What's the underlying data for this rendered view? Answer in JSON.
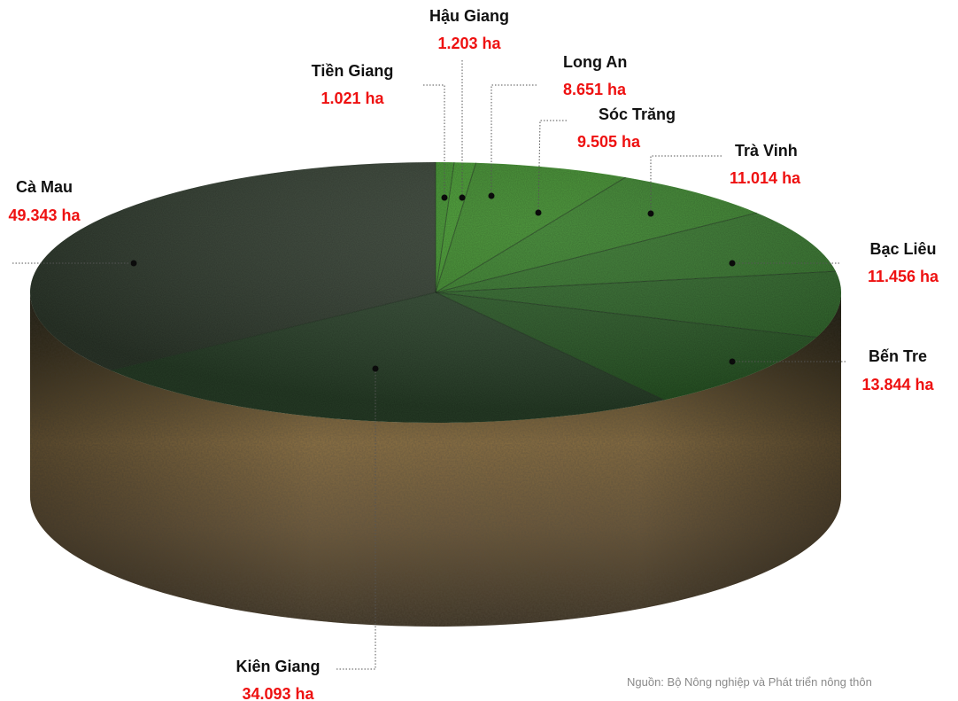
{
  "chart_data": {
    "type": "pie",
    "unit": "ha",
    "slices": [
      {
        "name": "Tiền Giang",
        "value": 1021,
        "label": "1.021 ha",
        "color": "#3f9a2a"
      },
      {
        "name": "Hậu Giang",
        "value": 1203,
        "label": "1.203 ha",
        "color": "#43a02c"
      },
      {
        "name": "Long An",
        "value": 8651,
        "label": "8.651 ha",
        "color": "#3e932a"
      },
      {
        "name": "Sóc Trăng",
        "value": 9505,
        "label": "9.505 ha",
        "color": "#3a8a2b"
      },
      {
        "name": "Trà Vinh",
        "value": 11014,
        "label": "11.014 ha",
        "color": "#357c2b"
      },
      {
        "name": "Bạc Liêu",
        "value": 11456,
        "label": "11.456 ha",
        "color": "#306e2a"
      },
      {
        "name": "Bến Tre",
        "value": 13844,
        "label": "13.844 ha",
        "color": "#2d6229"
      },
      {
        "name": "Kiên Giang",
        "value": 34093,
        "label": "34.093 ha",
        "color": "#2f4a2f"
      },
      {
        "name": "Cà Mau",
        "value": 49343,
        "label": "49.343 ha",
        "color": "#354233"
      }
    ],
    "label_color": "#111111",
    "value_color": "#ee1111"
  },
  "source": "Nguồn: Bộ Nông nghiệp và Phát triển nông thôn"
}
